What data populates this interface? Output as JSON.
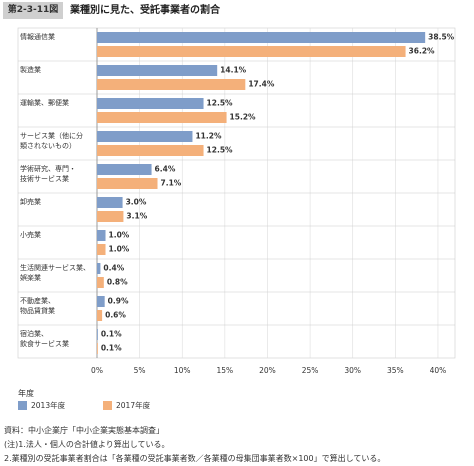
{
  "header": {
    "figure_no": "第2-3-11図",
    "title": "業種別に見た、受託事業者の割合"
  },
  "chart_data": {
    "type": "hbar",
    "categories": [
      "情報通信業",
      "製造業",
      "運輸業、郵便業",
      "サービス業（他に分\n類されないもの）",
      "学術研究、専門・\n技術サービス業",
      "卸売業",
      "小売業",
      "生活関連サービス業、\n娯楽業",
      "不動産業、\n物品賃貸業",
      "宿泊業、\n飲食サービス業"
    ],
    "series": [
      {
        "name": "2013年度",
        "color": "#7f9dc9",
        "values": [
          38.5,
          14.1,
          12.5,
          11.2,
          6.4,
          3.0,
          1.0,
          0.4,
          0.9,
          0.1
        ],
        "value_labels": [
          "38.5%",
          "14.1%",
          "12.5%",
          "11.2%",
          "6.4%",
          "3.0%",
          "1.0%",
          "0.4%",
          "0.9%",
          "0.1%"
        ]
      },
      {
        "name": "2017年度",
        "color": "#f4b07a",
        "values": [
          36.2,
          17.4,
          15.2,
          12.5,
          7.1,
          3.1,
          1.0,
          0.8,
          0.6,
          0.1
        ],
        "value_labels": [
          "36.2%",
          "17.4%",
          "15.2%",
          "12.5%",
          "7.1%",
          "3.1%",
          "1.0%",
          "0.8%",
          "0.6%",
          "0.1%"
        ]
      }
    ],
    "xlim": [
      0,
      42
    ],
    "xticks": [
      {
        "value": 0,
        "label": "0%"
      },
      {
        "value": 5,
        "label": "5%"
      },
      {
        "value": 10,
        "label": "10%"
      },
      {
        "value": 15,
        "label": "15%"
      },
      {
        "value": 20,
        "label": "20%"
      },
      {
        "value": 25,
        "label": "25%"
      },
      {
        "value": 30,
        "label": "30%"
      },
      {
        "value": 35,
        "label": "35%"
      },
      {
        "value": 40,
        "label": "40%"
      }
    ],
    "grid": true,
    "legend_title": "年度"
  },
  "notes": [
    "資料：中小企業庁「中小企業実態基本調査」",
    "(注)1.法人・個人の合計値より算出している。",
    "2.業種別の受託事業者割合は「各業種の受託事業者数／各業種の母集団事業者数×100」で算出している。"
  ]
}
